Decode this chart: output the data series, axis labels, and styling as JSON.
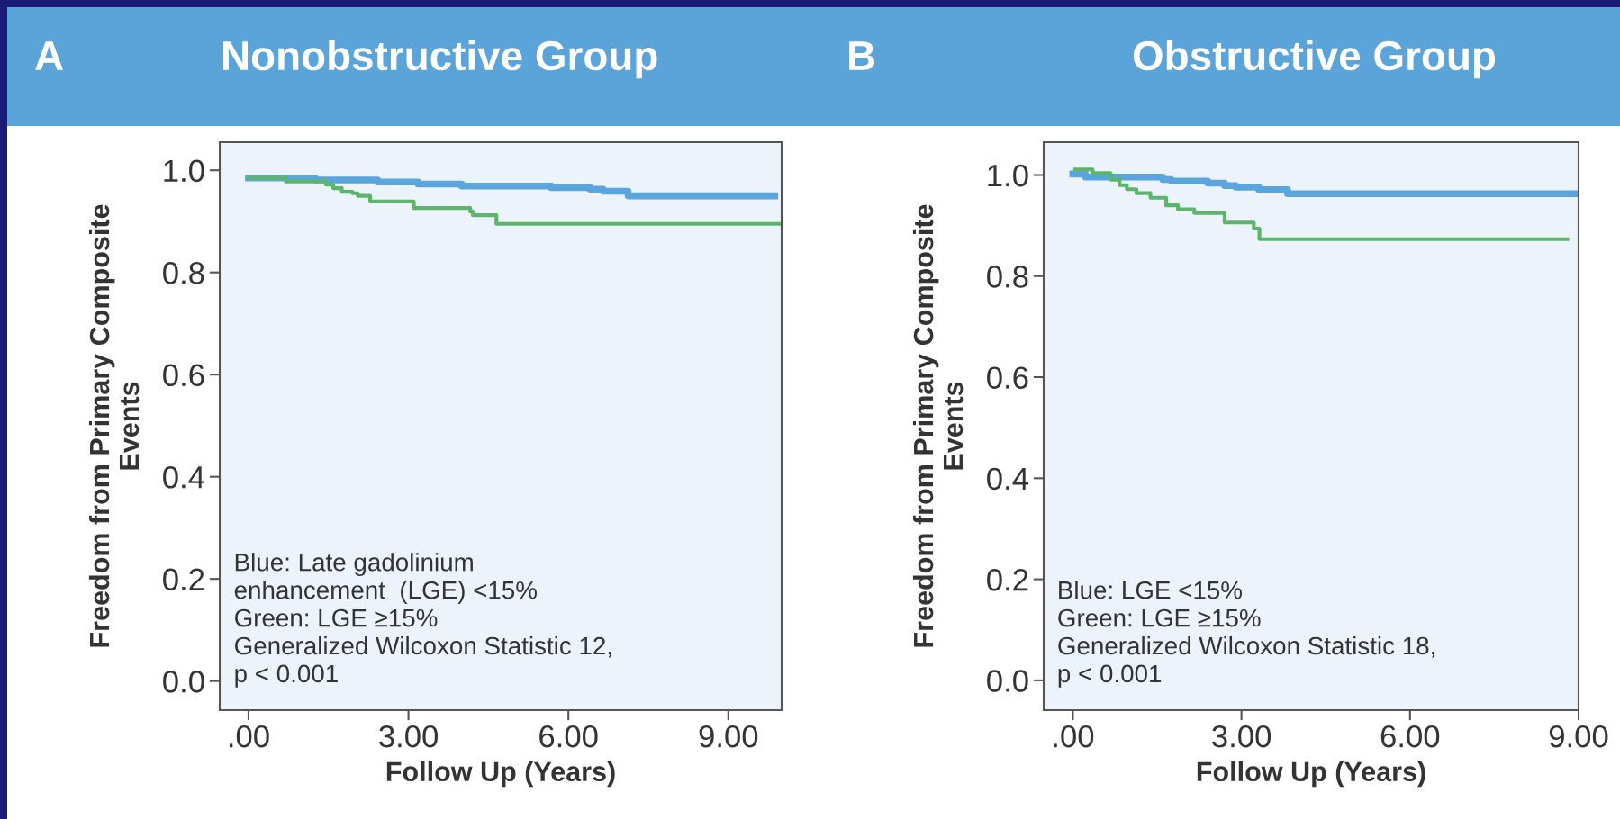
{
  "chart_data": [
    {
      "type": "step",
      "title": "Nonobstructive Group",
      "xlabel": "Follow Up (Years)",
      "ylabel": "Freedom from Primary Composite\nEvents",
      "xlim": [
        -0.54,
        10.0
      ],
      "ylim": [
        -0.057,
        1.055
      ],
      "xticks": [
        {
          "value": 0,
          "label": ".00"
        },
        {
          "value": 3,
          "label": "3.00"
        },
        {
          "value": 6,
          "label": "6.00"
        },
        {
          "value": 9,
          "label": "9.00"
        }
      ],
      "yticks": [
        {
          "value": 0,
          "label": "0.0"
        },
        {
          "value": 0.2,
          "label": "0.2"
        },
        {
          "value": 0.4,
          "label": "0.4"
        },
        {
          "value": 0.6,
          "label": "0.6"
        },
        {
          "value": 0.8,
          "label": "0.8"
        },
        {
          "value": 1.0,
          "label": "1.0"
        }
      ],
      "grid": false,
      "legend": false,
      "series": [
        {
          "color": "#5aa5dc",
          "x": [
            0,
            1.25,
            2.42,
            3.18,
            4.0,
            5.68,
            6.41,
            6.65,
            7.12,
            9.87
          ],
          "values": [
            0.985,
            0.981,
            0.977,
            0.973,
            0.969,
            0.966,
            0.963,
            0.959,
            0.95,
            0.95
          ]
        },
        {
          "color": "#5cb56a",
          "x": [
            0,
            0.7,
            1.45,
            1.59,
            1.75,
            1.95,
            2.05,
            2.28,
            3.1,
            4.16,
            4.21,
            4.65,
            10.0
          ],
          "values": [
            0.985,
            0.978,
            0.972,
            0.965,
            0.958,
            0.955,
            0.95,
            0.939,
            0.926,
            0.919,
            0.912,
            0.895,
            0.895
          ]
        }
      ],
      "annotations": [
        "A",
        "Blue: Late gadolinium\nenhancement  (LGE) <15%\nGreen: LGE ≥15%\nGeneralized Wilcoxon Statistic 12,\np < 0.001"
      ]
    },
    {
      "type": "step",
      "title": "Obstructive Group",
      "xlabel": "Follow Up (Years)",
      "ylabel": "Freedom from Primary Composite\nEvents",
      "xlim": [
        -0.52,
        9.0
      ],
      "ylim": [
        -0.059,
        1.065
      ],
      "xticks": [
        {
          "value": 0,
          "label": ".00"
        },
        {
          "value": 3,
          "label": "3.00"
        },
        {
          "value": 6,
          "label": "6.00"
        },
        {
          "value": 9,
          "label": "9.00"
        }
      ],
      "yticks": [
        {
          "value": 0,
          "label": "0.0"
        },
        {
          "value": 0.2,
          "label": "0.2"
        },
        {
          "value": 0.4,
          "label": "0.4"
        },
        {
          "value": 0.6,
          "label": "0.6"
        },
        {
          "value": 0.8,
          "label": "0.8"
        },
        {
          "value": 1.0,
          "label": "1.0"
        }
      ],
      "grid": false,
      "legend": false,
      "series": [
        {
          "color": "#5aa5dc",
          "x": [
            0,
            0.22,
            1.6,
            1.75,
            2.4,
            2.7,
            2.9,
            3.31,
            3.82,
            9.0
          ],
          "values": [
            1.002,
            0.996,
            0.991,
            0.988,
            0.984,
            0.979,
            0.976,
            0.971,
            0.963,
            0.963
          ]
        },
        {
          "color": "#5cb56a",
          "x": [
            0.04,
            0.35,
            0.67,
            0.83,
            0.96,
            1.13,
            1.38,
            1.66,
            1.87,
            2.16,
            2.7,
            3.22,
            3.32,
            8.8
          ],
          "values": [
            1.011,
            1.004,
            0.991,
            0.98,
            0.972,
            0.964,
            0.955,
            0.94,
            0.932,
            0.925,
            0.906,
            0.894,
            0.873,
            0.873
          ]
        }
      ],
      "annotations": [
        "B",
        "Blue: LGE <15%\nGreen: LGE ≥15%\nGeneralized Wilcoxon Statistic 18,\np < 0.001"
      ]
    }
  ]
}
